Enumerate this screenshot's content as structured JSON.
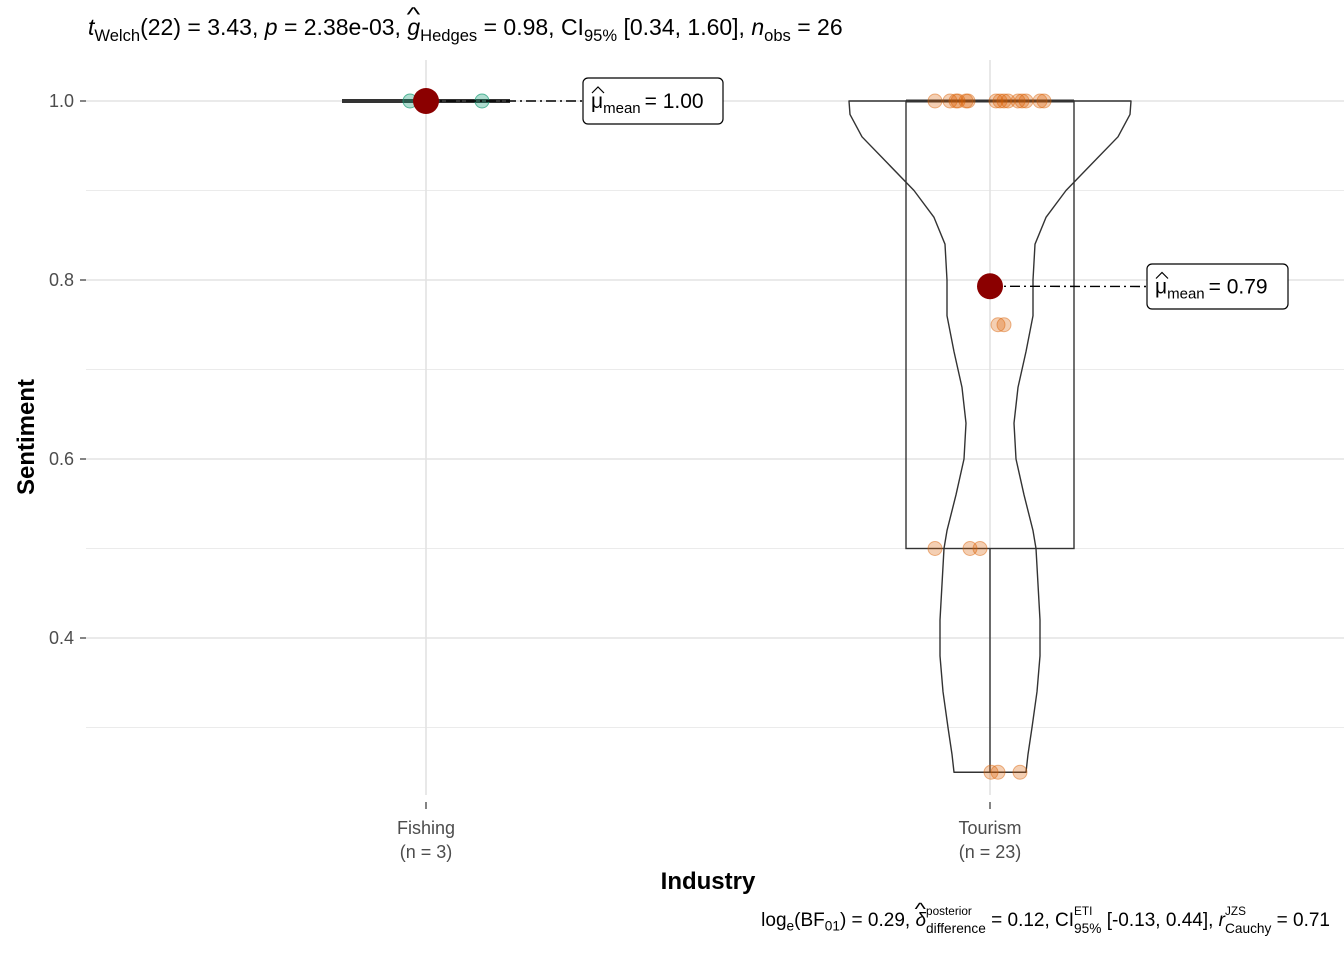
{
  "subtitle": {
    "t_sym": "t",
    "t_sub": "Welch",
    "df_stat": "(22) = 3.43,",
    "p_sym": "p",
    "p_val": "= 2.38e-03,",
    "g_sym": "g",
    "g_sub": "Hedges",
    "g_val": "= 0.98, CI",
    "ci_sub": "95%",
    "ci_val": "[0.34, 1.60],",
    "n_sym": "n",
    "n_sub": "obs",
    "n_val": "= 26"
  },
  "caption": {
    "log": "log",
    "log_sub": "e",
    "bf": "(BF",
    "bf_sub": "01",
    "bf_val": ") = 0.29,",
    "delta": "δ",
    "delta_sup": "posterior",
    "delta_sub": "difference",
    "delta_val": "= 0.12, CI",
    "ci_sup": "ETI",
    "ci_sub": "95%",
    "ci_val": "[-0.13, 0.44],",
    "r_sym": "r",
    "r_sup": "JZS",
    "r_sub": "Cauchy",
    "r_val": "= 0.71"
  },
  "chart_data": {
    "type": "violin-box-scatter",
    "xlabel": "Industry",
    "ylabel": "Sentiment",
    "y_ticks": [
      0.4,
      0.6,
      0.8,
      1.0
    ],
    "y_tick_labels": [
      "0.4",
      "0.6",
      "0.8",
      "1.0"
    ],
    "ylim": [
      0.2,
      1.05
    ],
    "grid": true,
    "categories": [
      "Fishing",
      "Tourism"
    ],
    "category_counts": [
      "(n = 3)",
      "(n = 23)"
    ],
    "groups": [
      {
        "name": "Fishing",
        "color": "#1b9e77",
        "points": [
          1.0,
          1.0,
          1.0
        ],
        "mean": 1.0,
        "mean_label": "= 1.00",
        "box": {
          "q1": 1.0,
          "median": 1.0,
          "q3": 1.0,
          "min": 1.0,
          "max": 1.0
        }
      },
      {
        "name": "Tourism",
        "color": "#d95f02",
        "points": [
          1.0,
          1.0,
          1.0,
          1.0,
          1.0,
          1.0,
          1.0,
          1.0,
          1.0,
          1.0,
          1.0,
          1.0,
          1.0,
          1.0,
          1.0,
          0.75,
          0.75,
          0.5,
          0.5,
          0.5,
          0.25,
          0.25,
          0.25
        ],
        "mean": 0.793,
        "mean_label": "= 0.79",
        "box": {
          "q1": 0.5,
          "median": 1.0,
          "q3": 1.0,
          "min": 0.25,
          "max": 1.0
        }
      }
    ],
    "mean_symbol": "μ",
    "mean_sub": "mean",
    "mean_color": "#8b0000"
  }
}
